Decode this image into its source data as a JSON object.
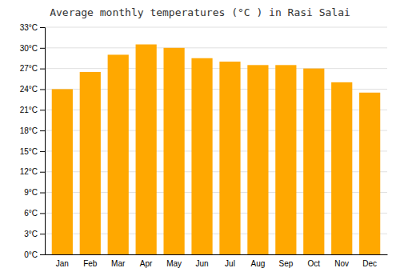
{
  "chart_data": {
    "type": "bar",
    "title": "Average monthly temperatures (°C ) in Rasi Salai",
    "categories": [
      "Jan",
      "Feb",
      "Mar",
      "Apr",
      "May",
      "Jun",
      "Jul",
      "Aug",
      "Sep",
      "Oct",
      "Nov",
      "Dec"
    ],
    "values": [
      24.0,
      26.5,
      29.0,
      30.5,
      30.0,
      28.5,
      28.0,
      27.5,
      27.5,
      27.0,
      25.0,
      23.5
    ],
    "color": "#FFA800",
    "ylim": [
      0,
      33
    ],
    "yticks": [
      {
        "value": 0,
        "label": "0°C"
      },
      {
        "value": 3,
        "label": "3°C"
      },
      {
        "value": 6,
        "label": "6°C"
      },
      {
        "value": 9,
        "label": "9°C"
      },
      {
        "value": 12,
        "label": "12°C"
      },
      {
        "value": 15,
        "label": "15°C"
      },
      {
        "value": 18,
        "label": "18°C"
      },
      {
        "value": 21,
        "label": "21°C"
      },
      {
        "value": 24,
        "label": "24°C"
      },
      {
        "value": 27,
        "label": "27°C"
      },
      {
        "value": 30,
        "label": "30°C"
      },
      {
        "value": 33,
        "label": "33°C"
      }
    ],
    "grid": true
  }
}
